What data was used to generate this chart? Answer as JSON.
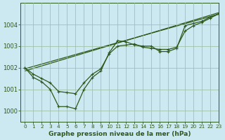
{
  "title": "Graphe pression niveau de la mer (hPa)",
  "bg_color": "#cce8f0",
  "grid_color": "#99bb99",
  "line_color": "#2d5a1b",
  "xlim": [
    -0.5,
    23
  ],
  "ylim": [
    999.5,
    1005.0
  ],
  "yticks": [
    1000,
    1001,
    1002,
    1003,
    1004
  ],
  "xticks": [
    0,
    1,
    2,
    3,
    4,
    5,
    6,
    7,
    8,
    9,
    10,
    11,
    12,
    13,
    14,
    15,
    16,
    17,
    18,
    19,
    20,
    21,
    22,
    23
  ],
  "trend1_x": [
    0,
    23
  ],
  "trend1_y": [
    1001.85,
    1004.55
  ],
  "trend2_x": [
    0,
    23
  ],
  "trend2_y": [
    1001.95,
    1004.48
  ],
  "wiggly_x": [
    0,
    1,
    2,
    3,
    4,
    5,
    6,
    7,
    8,
    9,
    10,
    11,
    12,
    13,
    14,
    15,
    16,
    17,
    18,
    19,
    20,
    21,
    22,
    23
  ],
  "wiggly_y": [
    1002.0,
    1001.55,
    1001.35,
    1001.0,
    1000.2,
    1000.2,
    1000.1,
    1001.0,
    1001.55,
    1001.85,
    1002.7,
    1003.25,
    1003.2,
    1003.05,
    1003.0,
    1003.0,
    1002.75,
    1002.75,
    1002.9,
    1003.95,
    1004.05,
    1004.15,
    1004.35,
    1004.5
  ],
  "smooth_x": [
    0,
    1,
    2,
    3,
    4,
    5,
    6,
    7,
    8,
    9,
    10,
    11,
    12,
    13,
    14,
    15,
    16,
    17,
    18,
    19,
    20,
    21,
    22,
    23
  ],
  "smooth_y": [
    1002.0,
    1001.7,
    1001.5,
    1001.3,
    1000.9,
    1000.85,
    1000.8,
    1001.3,
    1001.7,
    1001.95,
    1002.65,
    1003.0,
    1003.05,
    1003.1,
    1002.95,
    1002.9,
    1002.85,
    1002.85,
    1002.95,
    1003.7,
    1003.95,
    1004.1,
    1004.3,
    1004.5
  ],
  "xlabel_fontsize": 6,
  "ylabel_fontsize": 6.5,
  "title_fontsize": 6.5
}
